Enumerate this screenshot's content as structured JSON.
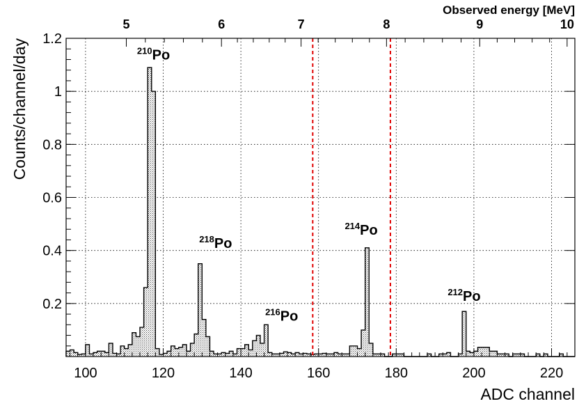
{
  "chart_data": {
    "type": "bar",
    "xlabel": "ADC channel",
    "ylabel": "Counts/channel/day",
    "xlim": [
      95,
      226
    ],
    "ylim": [
      0,
      1.2
    ],
    "bin_width": 1,
    "grid": true,
    "x_ticks": [
      100,
      120,
      140,
      160,
      180,
      200,
      220
    ],
    "y_ticks": [
      {
        "value": 0.2,
        "label": "0.2"
      },
      {
        "value": 0.4,
        "label": "0.4"
      },
      {
        "value": 0.6,
        "label": "0.6"
      },
      {
        "value": 0.8,
        "label": "0.8"
      },
      {
        "value": 1.0,
        "label": "1"
      },
      {
        "value": 1.2,
        "label": "1.2"
      }
    ],
    "top_axis": {
      "title": "Observed energy [MeV]",
      "ticks": [
        {
          "label": "5",
          "channel": 110.5
        },
        {
          "label": "6",
          "channel": 135.0
        },
        {
          "label": "7",
          "channel": 155.5
        },
        {
          "label": "8",
          "channel": 177.5
        },
        {
          "label": "9",
          "channel": 201.5
        },
        {
          "label": "10",
          "channel": 224.0
        }
      ]
    },
    "bins": {
      "x_start": 95,
      "values": [
        0.02,
        0.025,
        0.015,
        0.008,
        0.01,
        0.045,
        0.01,
        0.015,
        0.02,
        0.02,
        0.015,
        0.05,
        0.012,
        0.01,
        0.04,
        0.03,
        0.045,
        0.09,
        0.075,
        0.11,
        0.26,
        1.09,
        1.0,
        0.03,
        0.008,
        0.012,
        0.02,
        0.04,
        0.03,
        0.035,
        0.045,
        0.02,
        0.05,
        0.085,
        0.35,
        0.14,
        0.075,
        0.02,
        0.01,
        0.01,
        0.015,
        0.012,
        0.02,
        0.01,
        0.03,
        0.03,
        0.045,
        0.025,
        0.06,
        0.08,
        0.05,
        0.12,
        0.015,
        0.01,
        0.01,
        0.012,
        0.018,
        0.015,
        0.01,
        0.015,
        0.01,
        0.012,
        0.01,
        0.008,
        0.01,
        0.01,
        0.012,
        0.01,
        0.01,
        0.015,
        0.01,
        0.01,
        0.01,
        0.04,
        0.04,
        0.015,
        0.0,
        0.0,
        0.0,
        0.0,
        0.01,
        0.01,
        0.0,
        0.0,
        0.01,
        0.01,
        0.01,
        0.0,
        0.0,
        0.0,
        0.0,
        0.0,
        0.0,
        0.01,
        0.0,
        0.0,
        0.01,
        0.01,
        0.015,
        0.0,
        0.0,
        0.01,
        0.17,
        0.02,
        0.015,
        0.02,
        0.035,
        0.035,
        0.035,
        0.02,
        0.02,
        0.01,
        0.01,
        0.01,
        0.0,
        0.01,
        0.01,
        0.01,
        0.0,
        0.0,
        0.0,
        0.01,
        0.0,
        0.01,
        0.0,
        0.0,
        0.0,
        0.01,
        0.0,
        0.0,
        0.0
      ],
      "overrides": {
        "172": 0.41,
        "171": 0.1,
        "173": 0.05,
        "174": 0.01,
        "170": 0.03
      }
    },
    "markers": [
      {
        "channel": 158.5,
        "color": "#e00000"
      },
      {
        "channel": 178.5,
        "color": "#e00000"
      }
    ],
    "annotations": [
      {
        "mass": "210",
        "symbol": "Po",
        "channel": 117.5,
        "y": 1.12
      },
      {
        "mass": "218",
        "symbol": "Po",
        "channel": 133.5,
        "y": 0.41
      },
      {
        "mass": "216",
        "symbol": "Po",
        "channel": 150.5,
        "y": 0.135
      },
      {
        "mass": "214",
        "symbol": "Po",
        "channel": 171.0,
        "y": 0.46
      },
      {
        "mass": "212",
        "symbol": "Po",
        "channel": 197.5,
        "y": 0.21
      }
    ]
  }
}
